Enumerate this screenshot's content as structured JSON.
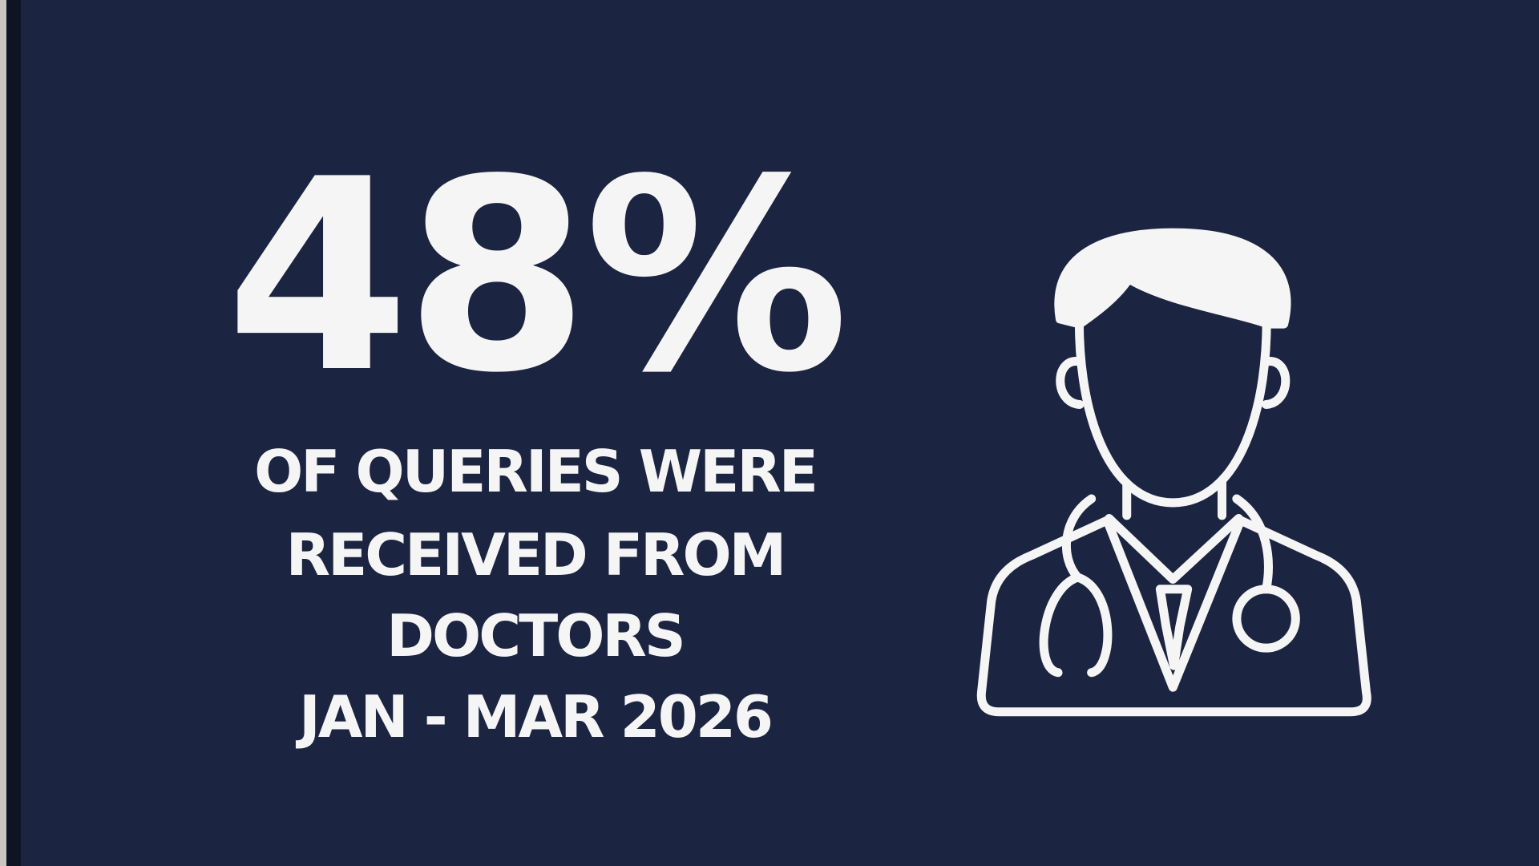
{
  "stat": "48%",
  "lines": [
    "OF QUERIES WERE",
    "RECEIVED FROM",
    "DOCTORS",
    "JAN - MAR 2026"
  ]
}
